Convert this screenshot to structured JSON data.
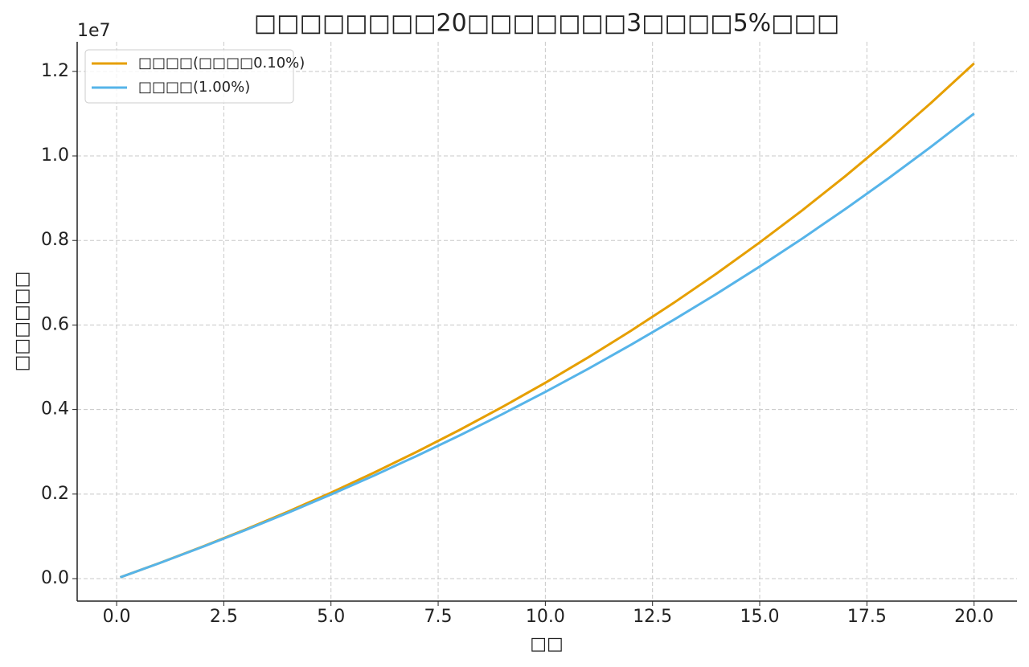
{
  "chart_data": {
    "type": "line",
    "title": "□□□□□□□□20□□□□□□□3□□□□5%□□□",
    "x_label": "□□",
    "y_label": "□□□□□□",
    "y_offset_text": "1e7",
    "x": [
      0.083,
      1,
      2,
      3,
      4,
      5,
      6,
      7,
      8,
      9,
      10,
      11,
      12,
      13,
      14,
      15,
      16,
      17,
      18,
      19,
      20
    ],
    "series": [
      {
        "name": "□□□□(□□□□0.10%)",
        "color": "#e69f00",
        "values": [
          30000,
          368200,
          754700,
          1160200,
          1585800,
          2032500,
          2505200,
          2998700,
          3517400,
          4062000,
          4634000,
          5234500,
          5865000,
          6527200,
          7222400,
          7952400,
          8719100,
          9524300,
          10369500,
          11257500,
          12189600
        ]
      },
      {
        "name": "□□□□(1.00%)",
        "color": "#56b4e9",
        "values": [
          30000,
          366700,
          748300,
          1145400,
          1558700,
          1989000,
          2436700,
          2902700,
          3387500,
          3892300,
          4417500,
          4964100,
          5533000,
          6125100,
          6741300,
          7382700,
          8050100,
          8744700,
          9467800,
          10220000,
          11003200
        ]
      }
    ],
    "xlim": [
      -0.92,
      21.0
    ],
    "ylim": [
      -532000,
      12700000
    ],
    "xticks": [
      {
        "value": 0,
        "label": "0.0"
      },
      2.5,
      {
        "value": 5,
        "label": "5.0"
      },
      7.5,
      {
        "value": 10,
        "label": "10.0"
      },
      12.5,
      {
        "value": 15,
        "label": "15.0"
      },
      17.5,
      {
        "value": 20,
        "label": "20.0"
      }
    ],
    "yticks": [
      {
        "value": 0,
        "label": "0.0"
      },
      {
        "value": 2000000,
        "label": "0.2"
      },
      {
        "value": 4000000,
        "label": "0.4"
      },
      {
        "value": 6000000,
        "label": "0.6"
      },
      {
        "value": 8000000,
        "label": "0.8"
      },
      {
        "value": 10000000,
        "label": "1.0"
      },
      {
        "value": 12000000,
        "label": "1.2"
      }
    ],
    "grid": true,
    "legend": "upper-left"
  }
}
